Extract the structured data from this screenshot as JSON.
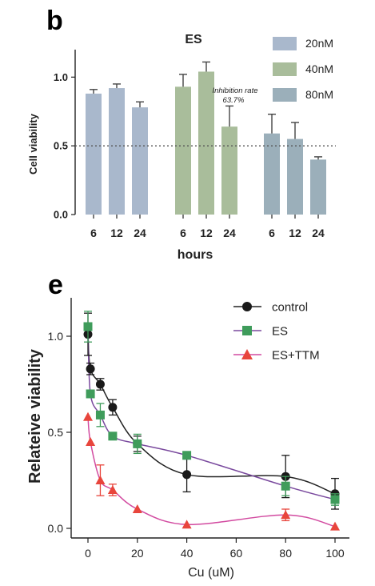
{
  "chart_data": [
    {
      "panel": "b",
      "type": "bar",
      "title": "ES",
      "xlabel": "hours",
      "ylabel": "Cell  viability",
      "ylim": [
        0,
        1.2
      ],
      "yticks": [
        "0.0",
        "0.5",
        "1.0"
      ],
      "categories": [
        "6",
        "12",
        "24"
      ],
      "series": [
        {
          "name": "20nM",
          "color": "#a9b8cc",
          "values": [
            0.88,
            0.92,
            0.78
          ],
          "errors": [
            0.03,
            0.03,
            0.04
          ]
        },
        {
          "name": "40nM",
          "color": "#a9bd9b",
          "values": [
            0.93,
            1.04,
            0.64
          ],
          "errors": [
            0.09,
            0.07,
            0.15
          ]
        },
        {
          "name": "80nM",
          "color": "#9bafba",
          "values": [
            0.59,
            0.55,
            0.4
          ],
          "errors": [
            0.14,
            0.12,
            0.02
          ]
        }
      ],
      "reference_line": 0.5,
      "legend_position": "top-right",
      "annotation": {
        "line1": "Inhibition rate",
        "line2": "63.7%"
      }
    },
    {
      "panel": "e",
      "type": "scatter",
      "xlabel": "Cu (uM)",
      "ylabel": "Relateive  viability",
      "xlim": [
        -5,
        105
      ],
      "ylim": [
        0,
        1.2
      ],
      "xticks": [
        "0",
        "20",
        "40",
        "60",
        "80",
        "100"
      ],
      "yticks": [
        "0.0",
        "0.5",
        "1.0"
      ],
      "legend_position": "top-right",
      "series": [
        {
          "name": "control",
          "color": "#1a1a1a",
          "marker": "circle",
          "x": [
            0,
            1,
            5,
            10,
            20,
            40,
            80,
            100
          ],
          "y": [
            1.01,
            0.83,
            0.75,
            0.63,
            0.44,
            0.28,
            0.27,
            0.18
          ],
          "errors": [
            0.11,
            0.03,
            0.03,
            0.04,
            0.04,
            0.09,
            0.11,
            0.08
          ]
        },
        {
          "name": "ES",
          "color": "#3f9c5b",
          "marker": "square",
          "x": [
            0,
            1,
            5,
            10,
            20,
            40,
            80,
            100
          ],
          "y": [
            1.05,
            0.7,
            0.59,
            0.48,
            0.44,
            0.38,
            0.22,
            0.15
          ],
          "errors": [
            0.08,
            0.0,
            0.06,
            0.0,
            0.05,
            0.0,
            0.05,
            0.03
          ]
        },
        {
          "name": "ES+TTM",
          "color": "#e8453c",
          "marker": "triangle",
          "x": [
            0,
            1,
            5,
            10,
            20,
            40,
            80,
            100
          ],
          "y": [
            0.58,
            0.45,
            0.25,
            0.2,
            0.1,
            0.02,
            0.07,
            0.01
          ],
          "errors": [
            0.0,
            0.0,
            0.08,
            0.03,
            0.0,
            0.0,
            0.03,
            0.0
          ]
        }
      ]
    }
  ]
}
